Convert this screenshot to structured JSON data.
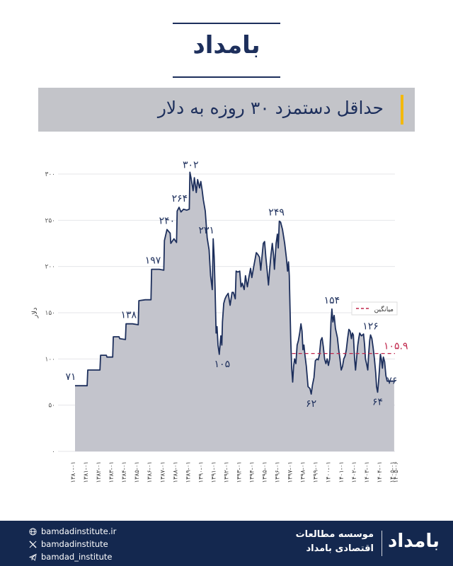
{
  "brand": {
    "logo_text": "بامداد"
  },
  "title": "حداقل دستمزد ۳۰ روزه به دلار",
  "chart_data": {
    "type": "area",
    "ylabel": "دلار",
    "ylim": [
      0,
      300
    ],
    "yticks": [
      "۰",
      "۵۰",
      "۱۰۰",
      "۱۵۰",
      "۲۰۰",
      "۲۵۰",
      "۳۰۰"
    ],
    "ytick_values": [
      0,
      50,
      100,
      150,
      200,
      250,
      300
    ],
    "grid": true,
    "legend": {
      "position": "top-right",
      "label": "میانگین"
    },
    "mean": {
      "value": 105.9,
      "label": "۱۰۵.۹",
      "start": 1397.0
    },
    "x_range": [
      1380.0,
      1405.06
    ],
    "xticks": [
      {
        "v": 1380.0,
        "label": "۱۳۸۰-۰۱"
      },
      {
        "v": 1381.0,
        "label": "۱۳۸۱-۰۱"
      },
      {
        "v": 1382.0,
        "label": "۱۳۸۲-۰۱"
      },
      {
        "v": 1383.0,
        "label": "۱۳۸۳-۰۱"
      },
      {
        "v": 1384.0,
        "label": "۱۳۸۴-۰۱"
      },
      {
        "v": 1385.0,
        "label": "۱۳۸۵-۰۱"
      },
      {
        "v": 1386.0,
        "label": "۱۳۸۶-۰۱"
      },
      {
        "v": 1387.0,
        "label": "۱۳۸۷-۰۱"
      },
      {
        "v": 1388.0,
        "label": "۱۳۸۸-۰۱"
      },
      {
        "v": 1389.0,
        "label": "۱۳۸۹-۰۱"
      },
      {
        "v": 1390.0,
        "label": "۱۳۹۰-۰۱"
      },
      {
        "v": 1391.0,
        "label": "۱۳۹۱-۰۱"
      },
      {
        "v": 1392.0,
        "label": "۱۳۹۲-۰۱"
      },
      {
        "v": 1393.0,
        "label": "۱۳۹۳-۰۱"
      },
      {
        "v": 1394.0,
        "label": "۱۳۹۴-۰۱"
      },
      {
        "v": 1395.0,
        "label": "۱۳۹۵-۰۱"
      },
      {
        "v": 1396.0,
        "label": "۱۳۹۶-۰۱"
      },
      {
        "v": 1397.0,
        "label": "۱۳۹۷-۰۱"
      },
      {
        "v": 1398.0,
        "label": "۱۳۹۸-۰۱"
      },
      {
        "v": 1399.0,
        "label": "۱۳۹۹-۰۱"
      },
      {
        "v": 1400.0,
        "label": "۱۴۰۰-۰۱"
      },
      {
        "v": 1401.0,
        "label": "۱۴۰۱-۰۱"
      },
      {
        "v": 1402.0,
        "label": "۱۴۰۲-۰۱"
      },
      {
        "v": 1403.0,
        "label": "۱۴۰۳-۰۱"
      },
      {
        "v": 1404.0,
        "label": "۱۴۰۴-۰۱"
      },
      {
        "v": 1405.0,
        "label": "۱۴۰۵-۰۱"
      },
      {
        "v": 1405.06,
        "label": "۱۴۰۵-۰۶"
      }
    ],
    "series": [
      {
        "values": [
          [
            1380.0,
            71
          ],
          [
            1380.95,
            71
          ],
          [
            1381.0,
            88
          ],
          [
            1381.95,
            88
          ],
          [
            1382.0,
            104
          ],
          [
            1382.45,
            104
          ],
          [
            1382.5,
            102
          ],
          [
            1382.95,
            102
          ],
          [
            1383.0,
            124
          ],
          [
            1383.45,
            124
          ],
          [
            1383.5,
            122
          ],
          [
            1383.95,
            121
          ],
          [
            1384.0,
            138
          ],
          [
            1384.5,
            138
          ],
          [
            1384.95,
            137
          ],
          [
            1385.0,
            163
          ],
          [
            1385.5,
            164
          ],
          [
            1385.95,
            164
          ],
          [
            1386.0,
            197
          ],
          [
            1386.6,
            197
          ],
          [
            1386.95,
            196
          ],
          [
            1387.0,
            228
          ],
          [
            1387.2,
            240
          ],
          [
            1387.45,
            236
          ],
          [
            1387.5,
            225
          ],
          [
            1387.75,
            230
          ],
          [
            1387.95,
            226
          ],
          [
            1388.0,
            260
          ],
          [
            1388.15,
            264
          ],
          [
            1388.3,
            259
          ],
          [
            1388.5,
            262
          ],
          [
            1388.75,
            261
          ],
          [
            1388.95,
            262
          ],
          [
            1389.0,
            302
          ],
          [
            1389.1,
            295
          ],
          [
            1389.25,
            282
          ],
          [
            1389.35,
            296
          ],
          [
            1389.5,
            280
          ],
          [
            1389.6,
            294
          ],
          [
            1389.75,
            285
          ],
          [
            1389.85,
            292
          ],
          [
            1389.95,
            283
          ],
          [
            1390.05,
            272
          ],
          [
            1390.2,
            260
          ],
          [
            1390.35,
            231
          ],
          [
            1390.5,
            218
          ],
          [
            1390.62,
            190
          ],
          [
            1390.75,
            175
          ],
          [
            1390.82,
            230
          ],
          [
            1390.9,
            210
          ],
          [
            1390.97,
            175
          ],
          [
            1391.05,
            128
          ],
          [
            1391.12,
            135
          ],
          [
            1391.2,
            115
          ],
          [
            1391.3,
            105
          ],
          [
            1391.42,
            125
          ],
          [
            1391.5,
            115
          ],
          [
            1391.55,
            140
          ],
          [
            1391.65,
            160
          ],
          [
            1391.75,
            165
          ],
          [
            1391.85,
            168
          ],
          [
            1392.0,
            171
          ],
          [
            1392.15,
            158
          ],
          [
            1392.3,
            172
          ],
          [
            1392.4,
            172
          ],
          [
            1392.55,
            165
          ],
          [
            1392.62,
            195
          ],
          [
            1392.75,
            194
          ],
          [
            1392.9,
            195
          ],
          [
            1393.0,
            178
          ],
          [
            1393.1,
            182
          ],
          [
            1393.25,
            175
          ],
          [
            1393.35,
            190
          ],
          [
            1393.5,
            178
          ],
          [
            1393.6,
            187
          ],
          [
            1393.75,
            198
          ],
          [
            1393.85,
            188
          ],
          [
            1394.0,
            200
          ],
          [
            1394.2,
            215
          ],
          [
            1394.32,
            213
          ],
          [
            1394.45,
            210
          ],
          [
            1394.55,
            196
          ],
          [
            1394.62,
            207
          ],
          [
            1394.75,
            225
          ],
          [
            1394.85,
            227
          ],
          [
            1394.95,
            210
          ],
          [
            1395.05,
            195
          ],
          [
            1395.15,
            180
          ],
          [
            1395.25,
            198
          ],
          [
            1395.35,
            213
          ],
          [
            1395.45,
            225
          ],
          [
            1395.55,
            212
          ],
          [
            1395.62,
            197
          ],
          [
            1395.75,
            225
          ],
          [
            1395.85,
            235
          ],
          [
            1395.92,
            220
          ],
          [
            1396.0,
            249
          ],
          [
            1396.1,
            248
          ],
          [
            1396.25,
            240
          ],
          [
            1396.42,
            225
          ],
          [
            1396.55,
            210
          ],
          [
            1396.65,
            195
          ],
          [
            1396.72,
            205
          ],
          [
            1396.78,
            190
          ],
          [
            1396.85,
            150
          ],
          [
            1396.9,
            120
          ],
          [
            1396.97,
            90
          ],
          [
            1397.05,
            75
          ],
          [
            1397.12,
            92
          ],
          [
            1397.2,
            100
          ],
          [
            1397.3,
            95
          ],
          [
            1397.4,
            115
          ],
          [
            1397.5,
            120
          ],
          [
            1397.6,
            128
          ],
          [
            1397.7,
            138
          ],
          [
            1397.78,
            130
          ],
          [
            1397.85,
            110
          ],
          [
            1397.93,
            115
          ],
          [
            1398.0,
            105
          ],
          [
            1398.12,
            92
          ],
          [
            1398.25,
            70
          ],
          [
            1398.4,
            68
          ],
          [
            1398.5,
            62
          ],
          [
            1398.6,
            72
          ],
          [
            1398.72,
            80
          ],
          [
            1398.82,
            98
          ],
          [
            1398.95,
            100
          ],
          [
            1399.05,
            99
          ],
          [
            1399.15,
            105
          ],
          [
            1399.25,
            120
          ],
          [
            1399.35,
            123
          ],
          [
            1399.45,
            113
          ],
          [
            1399.55,
            100
          ],
          [
            1399.65,
            95
          ],
          [
            1399.75,
            100
          ],
          [
            1399.85,
            93
          ],
          [
            1399.95,
            100
          ],
          [
            1400.05,
            140
          ],
          [
            1400.12,
            154
          ],
          [
            1400.2,
            140
          ],
          [
            1400.3,
            147
          ],
          [
            1400.4,
            133
          ],
          [
            1400.55,
            123
          ],
          [
            1400.65,
            110
          ],
          [
            1400.75,
            100
          ],
          [
            1400.85,
            88
          ],
          [
            1400.95,
            92
          ],
          [
            1401.05,
            100
          ],
          [
            1401.15,
            103
          ],
          [
            1401.25,
            110
          ],
          [
            1401.35,
            122
          ],
          [
            1401.45,
            132
          ],
          [
            1401.55,
            130
          ],
          [
            1401.65,
            122
          ],
          [
            1401.72,
            128
          ],
          [
            1401.8,
            126
          ],
          [
            1401.9,
            100
          ],
          [
            1401.97,
            88
          ],
          [
            1402.05,
            100
          ],
          [
            1402.15,
            115
          ],
          [
            1402.22,
            122
          ],
          [
            1402.3,
            128
          ],
          [
            1402.38,
            126
          ],
          [
            1402.45,
            125
          ],
          [
            1402.52,
            126
          ],
          [
            1402.6,
            127
          ],
          [
            1402.68,
            115
          ],
          [
            1402.75,
            100
          ],
          [
            1402.85,
            94
          ],
          [
            1402.93,
            88
          ],
          [
            1403.0,
            105
          ],
          [
            1403.08,
            120
          ],
          [
            1403.15,
            126
          ],
          [
            1403.25,
            122
          ],
          [
            1403.35,
            112
          ],
          [
            1403.45,
            100
          ],
          [
            1403.55,
            85
          ],
          [
            1403.62,
            70
          ],
          [
            1403.7,
            64
          ],
          [
            1403.78,
            76
          ],
          [
            1403.85,
            90
          ],
          [
            1403.92,
            105
          ],
          [
            1404.0,
            99
          ],
          [
            1404.08,
            90
          ],
          [
            1404.15,
            102
          ],
          [
            1404.25,
            97
          ],
          [
            1404.35,
            82
          ],
          [
            1404.45,
            76
          ],
          [
            1405.0,
            76
          ]
        ]
      }
    ],
    "annotations": [
      {
        "x": 1380.0,
        "y": 71,
        "label": "۷۱"
      },
      {
        "x": 1384.2,
        "y": 138,
        "label": "۱۳۸"
      },
      {
        "x": 1386.1,
        "y": 197,
        "label": "۱۹۷"
      },
      {
        "x": 1387.2,
        "y": 240,
        "label": "۲۴۰"
      },
      {
        "x": 1388.2,
        "y": 264,
        "label": "۲۶۴"
      },
      {
        "x": 1389.05,
        "y": 302,
        "label": "۳۰۲"
      },
      {
        "x": 1390.3,
        "y": 231,
        "label": "۲۳۱"
      },
      {
        "x": 1391.3,
        "y": 105,
        "label": "۱۰۵"
      },
      {
        "x": 1396.0,
        "y": 249,
        "label": "۲۴۹"
      },
      {
        "x": 1398.5,
        "y": 62,
        "label": "۶۲"
      },
      {
        "x": 1400.12,
        "y": 154,
        "label": "۱۵۴"
      },
      {
        "x": 1403.15,
        "y": 126,
        "label": "۱۲۶"
      },
      {
        "x": 1403.7,
        "y": 64,
        "label": "۶۴"
      },
      {
        "x": 1404.5,
        "y": 76,
        "label": "۷۶"
      }
    ],
    "colors": {
      "line": "#1d2f5c",
      "fill": "#c3c4cc",
      "mean": "#c0264b",
      "grid": "#e4e6ea"
    }
  },
  "footer": {
    "links": [
      {
        "icon": "globe-icon",
        "text": "bamdadinstitute.ir"
      },
      {
        "icon": "x-icon",
        "text": "bamdadinstitute"
      },
      {
        "icon": "telegram-icon",
        "text": "bamdad_institute"
      }
    ],
    "institute_line1": "موسسه مطالعات",
    "institute_line2": "اقتصادی بامداد",
    "logo_text": "بامداد"
  }
}
